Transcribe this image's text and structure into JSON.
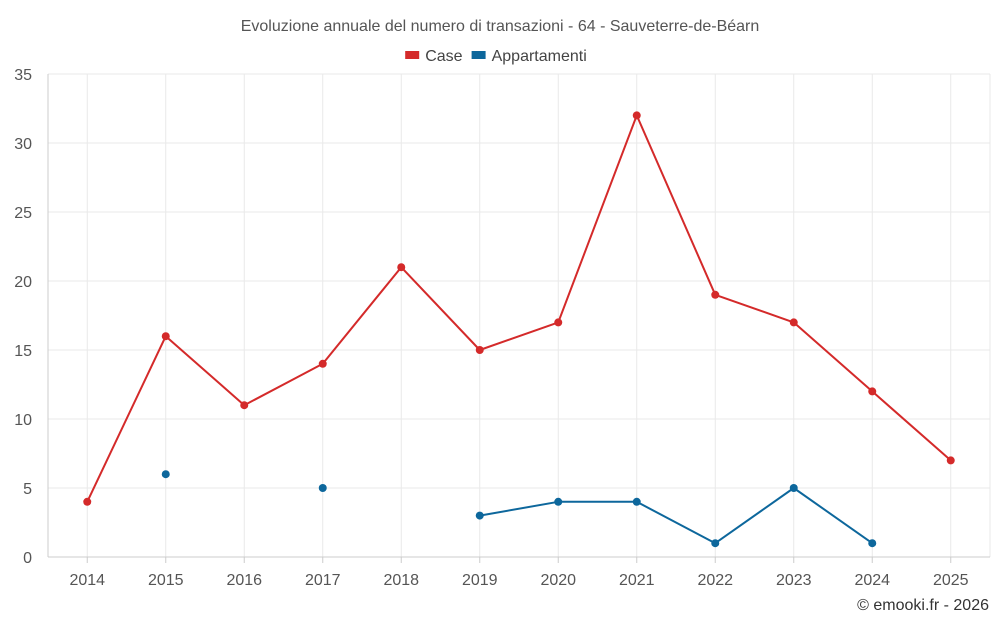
{
  "chart_data": {
    "type": "line",
    "title": "Evoluzione annuale del numero di transazioni - 64 - Sauveterre-de-Béarn",
    "x": [
      "2014",
      "2015",
      "2016",
      "2017",
      "2018",
      "2019",
      "2020",
      "2021",
      "2022",
      "2023",
      "2024",
      "2025"
    ],
    "series": [
      {
        "name": "Case",
        "color": "#d42a2a",
        "values": [
          4,
          16,
          11,
          14,
          21,
          15,
          17,
          32,
          19,
          17,
          12,
          7
        ]
      },
      {
        "name": "Appartamenti",
        "color": "#0d679c",
        "values": [
          null,
          6,
          null,
          5,
          null,
          3,
          4,
          4,
          1,
          5,
          1,
          null
        ]
      }
    ],
    "yticks": [
      0,
      5,
      10,
      15,
      20,
      25,
      30,
      35
    ],
    "ylim": [
      0,
      35
    ],
    "xlabel": "",
    "ylabel": "",
    "grid": true,
    "legend_position": "top-center",
    "credit": "© emooki.fr - 2026"
  }
}
